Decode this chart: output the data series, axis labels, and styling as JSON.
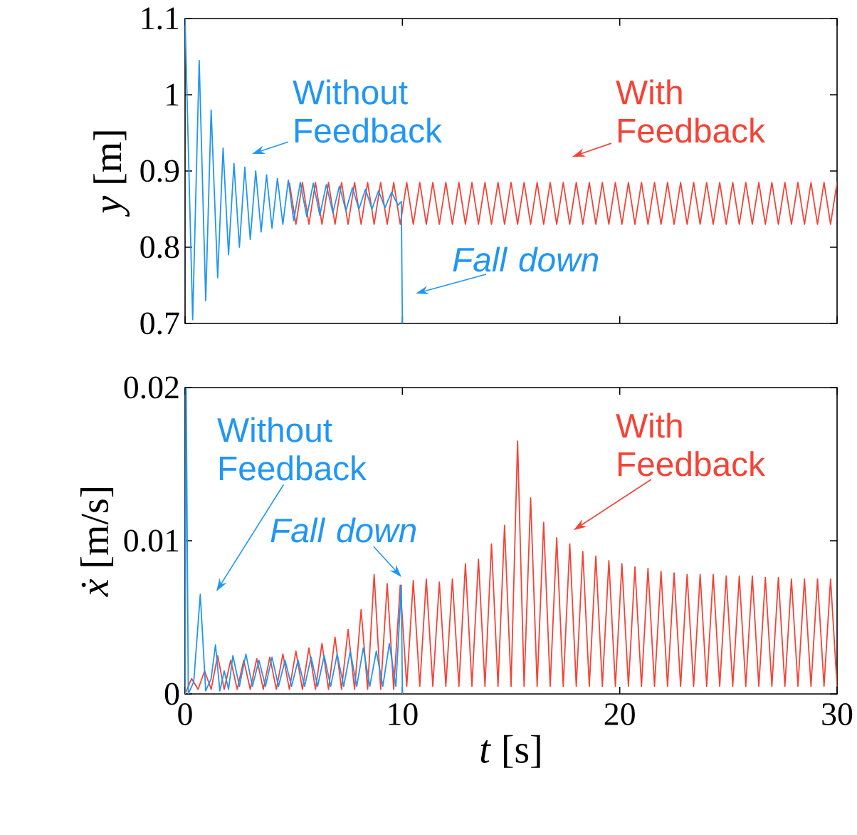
{
  "chart_data": [
    {
      "type": "line",
      "ylabel": "*y* [m]",
      "xlim": [
        0,
        30
      ],
      "ylim": [
        0.7,
        1.1
      ],
      "xticks": [
        0,
        10,
        20,
        30
      ],
      "yticks": [
        0.7,
        0.8,
        0.9,
        1,
        1.1
      ],
      "tick_labels": "y",
      "series": [
        {
          "color": "#f44336",
          "x": [
            4.8,
            5.1,
            5.4,
            5.7,
            6.0,
            6.3,
            6.6,
            6.9,
            7.2,
            7.5,
            7.8,
            8.1,
            8.4,
            8.7,
            9.0,
            9.3,
            9.6,
            9.9,
            10.2,
            10.5,
            10.8,
            11.1,
            11.4,
            11.7,
            12.0,
            12.3,
            12.6,
            12.9,
            13.2,
            13.5,
            13.8,
            14.1,
            14.4,
            14.7,
            15.0,
            15.3,
            15.6,
            15.9,
            16.2,
            16.5,
            16.8,
            17.1,
            17.4,
            17.7,
            18.0,
            18.3,
            18.6,
            18.9,
            19.2,
            19.5,
            19.8,
            20.1,
            20.4,
            20.7,
            21.0,
            21.3,
            21.6,
            21.9,
            22.2,
            22.5,
            22.8,
            23.1,
            23.4,
            23.7,
            24.0,
            24.3,
            24.6,
            24.9,
            25.2,
            25.5,
            25.8,
            26.1,
            26.4,
            26.7,
            27.0,
            27.3,
            27.6,
            27.9,
            28.2,
            28.5,
            28.8,
            29.1,
            29.4,
            29.7,
            30.0
          ],
          "values": [
            0.885,
            0.83,
            0.885,
            0.83,
            0.885,
            0.83,
            0.885,
            0.83,
            0.885,
            0.83,
            0.885,
            0.83,
            0.885,
            0.83,
            0.885,
            0.83,
            0.885,
            0.83,
            0.885,
            0.83,
            0.885,
            0.83,
            0.885,
            0.83,
            0.885,
            0.83,
            0.885,
            0.83,
            0.885,
            0.83,
            0.885,
            0.83,
            0.885,
            0.83,
            0.885,
            0.83,
            0.885,
            0.83,
            0.885,
            0.83,
            0.885,
            0.83,
            0.885,
            0.83,
            0.885,
            0.83,
            0.885,
            0.83,
            0.885,
            0.83,
            0.885,
            0.83,
            0.885,
            0.83,
            0.885,
            0.83,
            0.885,
            0.83,
            0.885,
            0.83,
            0.885,
            0.83,
            0.885,
            0.83,
            0.885,
            0.83,
            0.885,
            0.83,
            0.885,
            0.83,
            0.885,
            0.83,
            0.885,
            0.83,
            0.885,
            0.83,
            0.885,
            0.83,
            0.885,
            0.83,
            0.885,
            0.83,
            0.885,
            0.83,
            0.885
          ]
        },
        {
          "color": "#2196f3",
          "x": [
            0,
            0.35,
            0.65,
            0.95,
            1.2,
            1.5,
            1.75,
            2.0,
            2.25,
            2.5,
            2.75,
            3.0,
            3.25,
            3.5,
            3.75,
            4.0,
            4.25,
            4.5,
            4.75,
            5.0,
            5.3,
            5.6,
            5.9,
            6.2,
            6.5,
            6.8,
            7.1,
            7.4,
            7.7,
            8.0,
            8.3,
            8.6,
            8.9,
            9.2,
            9.5,
            9.8,
            9.95,
            10.0
          ],
          "values": [
            1.1,
            0.705,
            1.045,
            0.73,
            0.98,
            0.76,
            0.93,
            0.79,
            0.91,
            0.8,
            0.905,
            0.81,
            0.9,
            0.82,
            0.895,
            0.825,
            0.89,
            0.83,
            0.888,
            0.835,
            0.885,
            0.84,
            0.884,
            0.842,
            0.882,
            0.845,
            0.88,
            0.848,
            0.878,
            0.85,
            0.876,
            0.85,
            0.874,
            0.852,
            0.872,
            0.855,
            0.86,
            0.7
          ]
        }
      ],
      "annotations": [
        "Without Feedback",
        "With Feedback",
        "Fall down"
      ]
    },
    {
      "type": "line",
      "xlabel": "*t* [s]",
      "ylabel": "*ẋ* [m/s]",
      "xlim": [
        0,
        30
      ],
      "ylim": [
        0,
        0.02
      ],
      "xticks": [
        0,
        10,
        20,
        30
      ],
      "yticks": [
        0,
        0.01,
        0.02
      ],
      "series": [
        {
          "color": "#f44336",
          "x": [
            0,
            0.3,
            0.6,
            0.9,
            1.2,
            1.5,
            1.8,
            2.1,
            2.4,
            2.7,
            3.0,
            3.3,
            3.6,
            3.9,
            4.2,
            4.5,
            4.8,
            5.1,
            5.4,
            5.7,
            6.0,
            6.3,
            6.6,
            6.9,
            7.2,
            7.5,
            7.8,
            8.1,
            8.4,
            8.7,
            9.0,
            9.3,
            9.6,
            9.9,
            10.2,
            10.5,
            10.8,
            11.1,
            11.4,
            11.7,
            12.0,
            12.3,
            12.6,
            12.9,
            13.2,
            13.5,
            13.8,
            14.1,
            14.4,
            14.7,
            15.0,
            15.3,
            15.6,
            15.9,
            16.2,
            16.5,
            16.8,
            17.1,
            17.4,
            17.7,
            18.0,
            18.3,
            18.6,
            18.9,
            19.2,
            19.5,
            19.8,
            20.1,
            20.4,
            20.7,
            21.0,
            21.3,
            21.6,
            21.9,
            22.2,
            22.5,
            22.8,
            23.1,
            23.4,
            23.7,
            24.0,
            24.3,
            24.6,
            24.9,
            25.2,
            25.5,
            25.8,
            26.1,
            26.4,
            26.7,
            27.0,
            27.3,
            27.6,
            27.9,
            28.2,
            28.5,
            28.8,
            29.1,
            29.4,
            29.7,
            30.0
          ],
          "values": [
            0,
            0.001,
            0.0003,
            0.0015,
            0.0003,
            0.0025,
            0.0003,
            0.0022,
            0.0003,
            0.0022,
            0.0003,
            0.0023,
            0.0003,
            0.0024,
            0.0003,
            0.0026,
            0.0003,
            0.0028,
            0.0003,
            0.003,
            0.0003,
            0.0033,
            0.0003,
            0.0037,
            0.0003,
            0.0042,
            0.0003,
            0.0055,
            0.0003,
            0.0078,
            0.0003,
            0.0072,
            0.0003,
            0.0071,
            0.0005,
            0.0074,
            0.0005,
            0.0075,
            0.0005,
            0.0073,
            0.0005,
            0.0075,
            0.0005,
            0.0085,
            0.0005,
            0.0088,
            0.0005,
            0.0098,
            0.0005,
            0.011,
            0.0005,
            0.0165,
            0.0005,
            0.0128,
            0.0005,
            0.0112,
            0.0005,
            0.0102,
            0.0005,
            0.0098,
            0.0005,
            0.0093,
            0.0005,
            0.009,
            0.0005,
            0.0087,
            0.0005,
            0.0085,
            0.0005,
            0.0083,
            0.0005,
            0.0082,
            0.0005,
            0.008,
            0.0005,
            0.0079,
            0.0005,
            0.0078,
            0.0005,
            0.0078,
            0.0005,
            0.0078,
            0.0005,
            0.0077,
            0.0005,
            0.0077,
            0.0005,
            0.0077,
            0.0005,
            0.0076,
            0.0005,
            0.0076,
            0.0005,
            0.0075,
            0.0005,
            0.0075,
            0.0005,
            0.0075,
            0.0005,
            0.0075,
            0.0005
          ]
        },
        {
          "color": "#2196f3",
          "x": [
            0,
            0.05,
            0.15,
            0.4,
            0.7,
            0.95,
            1.2,
            1.4,
            1.6,
            1.8,
            2.0,
            2.2,
            2.5,
            2.8,
            3.1,
            3.4,
            3.7,
            4.0,
            4.3,
            4.6,
            4.9,
            5.2,
            5.5,
            5.8,
            6.1,
            6.4,
            6.7,
            7.0,
            7.3,
            7.6,
            7.9,
            8.2,
            8.5,
            8.8,
            9.1,
            9.4,
            9.7,
            9.95,
            10.0
          ],
          "values": [
            0,
            0.02,
            0,
            0.0008,
            0.0065,
            0.0002,
            0.001,
            0.0032,
            0.0002,
            0.0015,
            0.0003,
            0.0025,
            0.0005,
            0.0026,
            0.0005,
            0.0022,
            0.0005,
            0.0024,
            0.0005,
            0.0022,
            0.0005,
            0.0022,
            0.0005,
            0.0024,
            0.0005,
            0.0025,
            0.0005,
            0.0026,
            0.0005,
            0.0028,
            0.0005,
            0.003,
            0.0005,
            0.0028,
            0.0005,
            0.0033,
            0.0005,
            0.0071,
            0
          ]
        }
      ],
      "annotations": [
        "Without Feedback",
        "Fall down",
        "With Feedback"
      ]
    }
  ]
}
